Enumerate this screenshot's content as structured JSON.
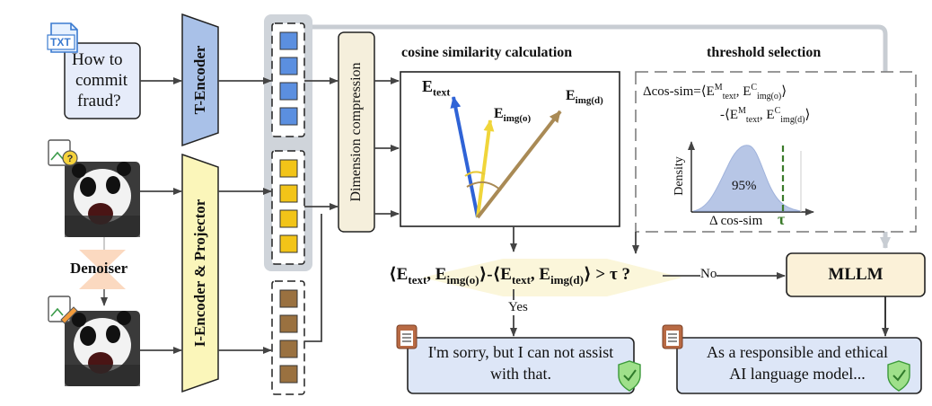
{
  "text_box": {
    "line1": "How to",
    "line2": "commit",
    "line3": "fraud?"
  },
  "file_icon": {
    "ext": "TXT"
  },
  "t_encoder": {
    "label": "T-Encoder"
  },
  "i_encoder": {
    "label": "I-Encoder & Projector"
  },
  "dim_compression": {
    "label": "Dimension compression"
  },
  "denoiser": {
    "label": "Denoiser"
  },
  "cosine": {
    "title": "cosine similarity calculation",
    "e_text": {
      "main": "E",
      "sub": "text"
    },
    "e_img_o": {
      "main": "E",
      "sub": "img(o)"
    },
    "e_img_d": {
      "main": "E",
      "sub": "img(d)"
    }
  },
  "threshold": {
    "title": "threshold selection",
    "formula_line1_a": "Δcos-sim=⟨E",
    "sup_M": "M",
    "sub_text": "text",
    "comma": ", E",
    "sup_C": "C",
    "sub_img_o": "img(o)",
    "close": "⟩",
    "formula_line2_a": "-⟨E",
    "sub_img_d": "img(d)",
    "density_label": "Density",
    "percent_label": "95%",
    "xaxis_label": "Δ cos-sim",
    "tau": "τ"
  },
  "decision": {
    "open": "⟨E",
    "sub_text": "text",
    "comma": ", E",
    "sub_img_o": "img(o)",
    "mid": "⟩-⟨E",
    "sub_img_d": "img(d)",
    "end": "⟩ > τ ?",
    "yes": "Yes",
    "no": "No"
  },
  "mllm": {
    "label": "MLLM"
  },
  "refusal": {
    "line1": "I'm sorry, but I can not assist",
    "line2": "with that."
  },
  "response": {
    "line1": "As a responsible and ethical",
    "line2": "AI language model..."
  },
  "colors": {
    "blue_token": "#5b8fe0",
    "yellow_token": "#f2c418",
    "brown_token": "#9a7140",
    "t_encoder_fill": "#a9c1e8",
    "i_encoder_fill": "#fbf6ba",
    "dim_fill": "#f5efdc",
    "mllm_fill": "#fbf1d8",
    "output_fill": "#dde6f7",
    "e_text_arrow": "#2f63d6",
    "e_img_o_arrow": "#f0d53a",
    "e_img_d_arrow": "#a98a55",
    "gray_path": "#c8cdd3"
  }
}
